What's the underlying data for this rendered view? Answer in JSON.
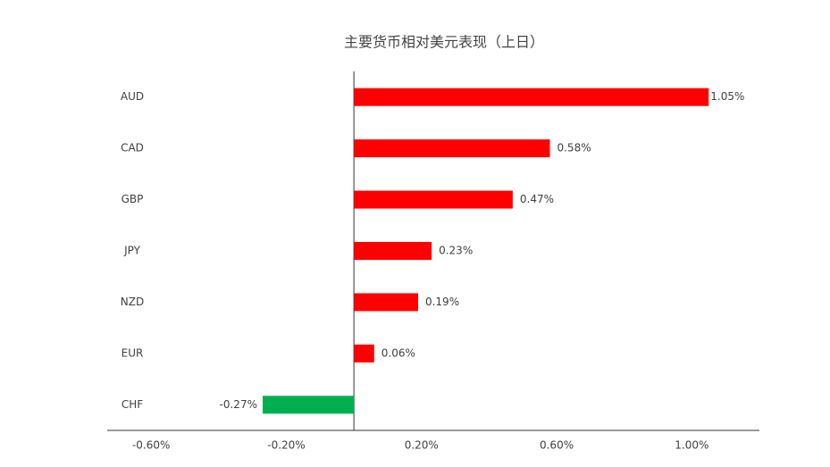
{
  "chart_data": {
    "type": "bar",
    "orientation": "horizontal",
    "title": "主要货币相对美元表现（上日）",
    "categories": [
      "AUD",
      "CAD",
      "GBP",
      "JPY",
      "NZD",
      "EUR",
      "CHF"
    ],
    "values": [
      1.05,
      0.58,
      0.47,
      0.23,
      0.19,
      0.06,
      -0.27
    ],
    "value_labels": [
      "1.05%",
      "0.58%",
      "0.47%",
      "0.23%",
      "0.19%",
      "0.06%",
      "-0.27%"
    ],
    "colors": [
      "#ff0000",
      "#ff0000",
      "#ff0000",
      "#ff0000",
      "#ff0000",
      "#ff0000",
      "#00b050"
    ],
    "xlim": [
      -0.73,
      1.2
    ],
    "xticks": [
      {
        "value": -0.6,
        "label": "-0.60%"
      },
      {
        "value": -0.2,
        "label": "-0.20%"
      },
      {
        "value": 0.2,
        "label": "0.20%"
      },
      {
        "value": 0.6,
        "label": "0.60%"
      },
      {
        "value": 1.0,
        "label": "1.00%"
      }
    ],
    "grid": false
  }
}
